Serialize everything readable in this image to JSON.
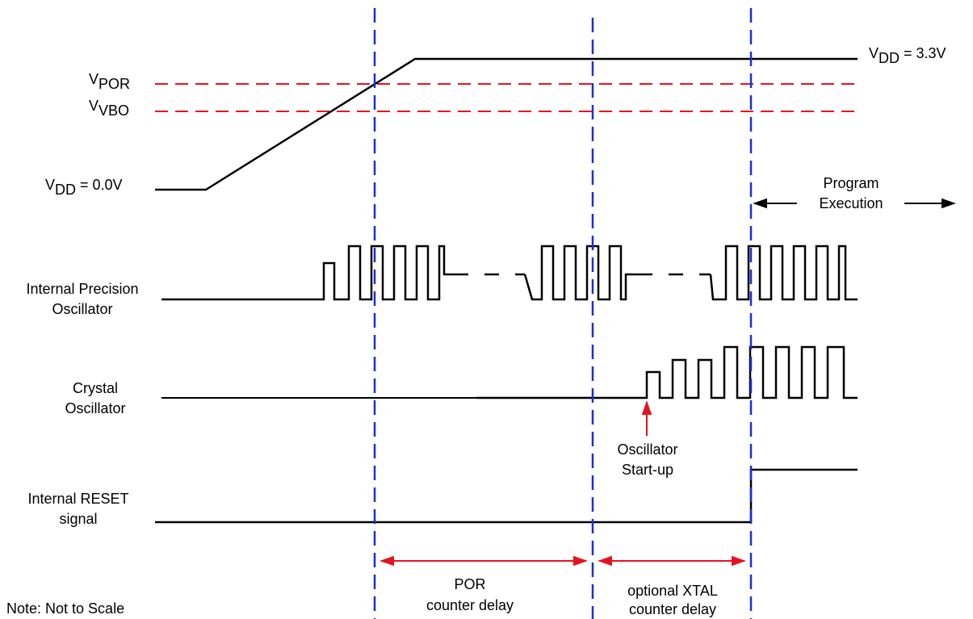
{
  "colors": {
    "signal": "#000000",
    "threshold": "#e8121f",
    "marker": "#1a2fd4",
    "arrow": "#e8121f"
  },
  "voltage": {
    "vdd_high": {
      "main": "V",
      "sub": "DD",
      "rest": " = 3.3V"
    },
    "vdd_low": {
      "main": "V",
      "sub": "DD",
      "rest": " = 0.0V"
    },
    "vpor": {
      "main": "V",
      "sub": "POR"
    },
    "vvbo": {
      "main": "V",
      "sub": "VBO"
    }
  },
  "signals": {
    "ipo": {
      "line1": "Internal Precision",
      "line2": "Oscillator"
    },
    "xtal": {
      "line1": "Crystal",
      "line2": "Oscillator"
    },
    "reset": {
      "line1": "Internal RESET",
      "line2": "signal"
    }
  },
  "program_execution": {
    "line1": "Program",
    "line2": "Execution"
  },
  "oscillator_startup": {
    "line1": "Oscillator",
    "line2": "Start-up"
  },
  "delays": {
    "por": {
      "line1": "POR",
      "line2": "counter delay"
    },
    "xtal": {
      "line1": "optional XTAL",
      "line2": "counter delay"
    }
  },
  "note": "Note: Not to Scale"
}
